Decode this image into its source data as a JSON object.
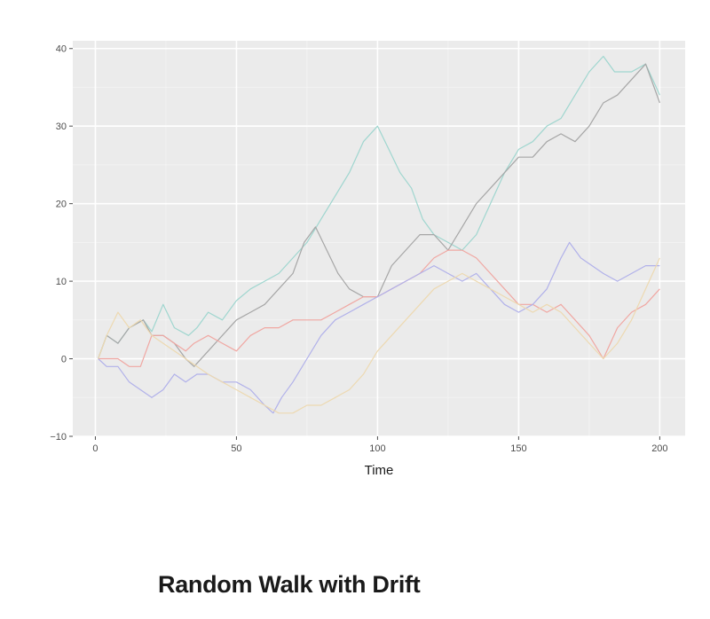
{
  "caption": "Random Walk with Drift",
  "chart_data": {
    "type": "line",
    "title": "",
    "xlabel": "Time",
    "ylabel": "",
    "xlim": [
      -8,
      209
    ],
    "ylim": [
      -10,
      41
    ],
    "x_ticks": [
      0,
      50,
      100,
      150,
      200
    ],
    "y_ticks": [
      -10,
      0,
      10,
      20,
      30,
      40
    ],
    "grid": true,
    "legend": "none",
    "background": "#ebebeb",
    "series": [
      {
        "color": "#9fd6cf",
        "points": [
          [
            1,
            0
          ],
          [
            4,
            3
          ],
          [
            8,
            2
          ],
          [
            12,
            4
          ],
          [
            17,
            5
          ],
          [
            20,
            3.5
          ],
          [
            24,
            7
          ],
          [
            28,
            4
          ],
          [
            33,
            3
          ],
          [
            36,
            4
          ],
          [
            40,
            6
          ],
          [
            45,
            5
          ],
          [
            50,
            7.5
          ],
          [
            55,
            9
          ],
          [
            60,
            10
          ],
          [
            65,
            11
          ],
          [
            70,
            13
          ],
          [
            75,
            15
          ],
          [
            80,
            18
          ],
          [
            85,
            21
          ],
          [
            90,
            24
          ],
          [
            95,
            28
          ],
          [
            100,
            30
          ],
          [
            104,
            27
          ],
          [
            108,
            24
          ],
          [
            112,
            22
          ],
          [
            116,
            18
          ],
          [
            120,
            16
          ],
          [
            125,
            15
          ],
          [
            130,
            14
          ],
          [
            135,
            16
          ],
          [
            140,
            20
          ],
          [
            145,
            24
          ],
          [
            150,
            27
          ],
          [
            155,
            28
          ],
          [
            160,
            30
          ],
          [
            165,
            31
          ],
          [
            170,
            34
          ],
          [
            175,
            37
          ],
          [
            180,
            39
          ],
          [
            184,
            37
          ],
          [
            190,
            37
          ],
          [
            195,
            38
          ],
          [
            200,
            34
          ]
        ]
      },
      {
        "color": "#a6a6a6",
        "points": [
          [
            1,
            0
          ],
          [
            4,
            3
          ],
          [
            8,
            2
          ],
          [
            12,
            4
          ],
          [
            17,
            5
          ],
          [
            20,
            3
          ],
          [
            24,
            3
          ],
          [
            28,
            2
          ],
          [
            32,
            0
          ],
          [
            35,
            -1
          ],
          [
            40,
            1
          ],
          [
            45,
            3
          ],
          [
            50,
            5
          ],
          [
            55,
            6
          ],
          [
            60,
            7
          ],
          [
            65,
            9
          ],
          [
            70,
            11
          ],
          [
            74,
            15
          ],
          [
            78,
            17
          ],
          [
            82,
            14
          ],
          [
            86,
            11
          ],
          [
            90,
            9
          ],
          [
            95,
            8
          ],
          [
            100,
            8
          ],
          [
            105,
            12
          ],
          [
            110,
            14
          ],
          [
            115,
            16
          ],
          [
            120,
            16
          ],
          [
            125,
            14
          ],
          [
            130,
            17
          ],
          [
            135,
            20
          ],
          [
            140,
            22
          ],
          [
            145,
            24
          ],
          [
            150,
            26
          ],
          [
            155,
            26
          ],
          [
            160,
            28
          ],
          [
            165,
            29
          ],
          [
            170,
            28
          ],
          [
            175,
            30
          ],
          [
            180,
            33
          ],
          [
            185,
            34
          ],
          [
            190,
            36
          ],
          [
            195,
            38
          ],
          [
            200,
            33
          ]
        ]
      },
      {
        "color": "#f0a7a2",
        "points": [
          [
            1,
            0
          ],
          [
            4,
            0
          ],
          [
            8,
            0
          ],
          [
            12,
            -1
          ],
          [
            16,
            -1
          ],
          [
            20,
            3
          ],
          [
            24,
            3
          ],
          [
            28,
            2
          ],
          [
            32,
            1
          ],
          [
            35,
            2
          ],
          [
            40,
            3
          ],
          [
            45,
            2
          ],
          [
            50,
            1
          ],
          [
            55,
            3
          ],
          [
            60,
            4
          ],
          [
            65,
            4
          ],
          [
            70,
            5
          ],
          [
            75,
            5
          ],
          [
            80,
            5
          ],
          [
            85,
            6
          ],
          [
            90,
            7
          ],
          [
            95,
            8
          ],
          [
            100,
            8
          ],
          [
            105,
            9
          ],
          [
            110,
            10
          ],
          [
            115,
            11
          ],
          [
            120,
            13
          ],
          [
            125,
            14
          ],
          [
            130,
            14
          ],
          [
            135,
            13
          ],
          [
            140,
            11
          ],
          [
            145,
            9
          ],
          [
            150,
            7
          ],
          [
            155,
            7
          ],
          [
            160,
            6
          ],
          [
            165,
            7
          ],
          [
            170,
            5
          ],
          [
            175,
            3
          ],
          [
            180,
            0
          ],
          [
            185,
            4
          ],
          [
            190,
            6
          ],
          [
            195,
            7
          ],
          [
            200,
            9
          ]
        ]
      },
      {
        "color": "#b1b1ea",
        "points": [
          [
            1,
            0
          ],
          [
            4,
            -1
          ],
          [
            8,
            -1
          ],
          [
            12,
            -3
          ],
          [
            16,
            -4
          ],
          [
            20,
            -5
          ],
          [
            24,
            -4
          ],
          [
            28,
            -2
          ],
          [
            32,
            -3
          ],
          [
            36,
            -2
          ],
          [
            40,
            -2
          ],
          [
            45,
            -3
          ],
          [
            50,
            -3
          ],
          [
            55,
            -4
          ],
          [
            60,
            -6
          ],
          [
            63,
            -7
          ],
          [
            66,
            -5
          ],
          [
            70,
            -3
          ],
          [
            75,
            0
          ],
          [
            80,
            3
          ],
          [
            85,
            5
          ],
          [
            90,
            6
          ],
          [
            95,
            7
          ],
          [
            100,
            8
          ],
          [
            105,
            9
          ],
          [
            110,
            10
          ],
          [
            115,
            11
          ],
          [
            120,
            12
          ],
          [
            125,
            11
          ],
          [
            130,
            10
          ],
          [
            135,
            11
          ],
          [
            140,
            9
          ],
          [
            145,
            7
          ],
          [
            150,
            6
          ],
          [
            155,
            7
          ],
          [
            160,
            9
          ],
          [
            165,
            13
          ],
          [
            168,
            15
          ],
          [
            172,
            13
          ],
          [
            176,
            12
          ],
          [
            180,
            11
          ],
          [
            185,
            10
          ],
          [
            190,
            11
          ],
          [
            195,
            12
          ],
          [
            200,
            12
          ]
        ]
      },
      {
        "color": "#edd9b1",
        "points": [
          [
            1,
            0
          ],
          [
            4,
            3
          ],
          [
            8,
            6
          ],
          [
            12,
            4
          ],
          [
            16,
            5
          ],
          [
            20,
            3
          ],
          [
            24,
            2
          ],
          [
            28,
            1
          ],
          [
            32,
            0
          ],
          [
            36,
            -1
          ],
          [
            40,
            -2
          ],
          [
            45,
            -3
          ],
          [
            50,
            -4
          ],
          [
            55,
            -5
          ],
          [
            60,
            -6
          ],
          [
            65,
            -7
          ],
          [
            70,
            -7
          ],
          [
            75,
            -6
          ],
          [
            80,
            -6
          ],
          [
            85,
            -5
          ],
          [
            90,
            -4
          ],
          [
            95,
            -2
          ],
          [
            100,
            1
          ],
          [
            105,
            3
          ],
          [
            110,
            5
          ],
          [
            115,
            7
          ],
          [
            120,
            9
          ],
          [
            125,
            10
          ],
          [
            130,
            11
          ],
          [
            135,
            10
          ],
          [
            140,
            9
          ],
          [
            145,
            8
          ],
          [
            150,
            7
          ],
          [
            155,
            6
          ],
          [
            160,
            7
          ],
          [
            165,
            6
          ],
          [
            170,
            4
          ],
          [
            175,
            2
          ],
          [
            180,
            0
          ],
          [
            185,
            2
          ],
          [
            190,
            5
          ],
          [
            195,
            9
          ],
          [
            200,
            13
          ]
        ]
      }
    ]
  }
}
